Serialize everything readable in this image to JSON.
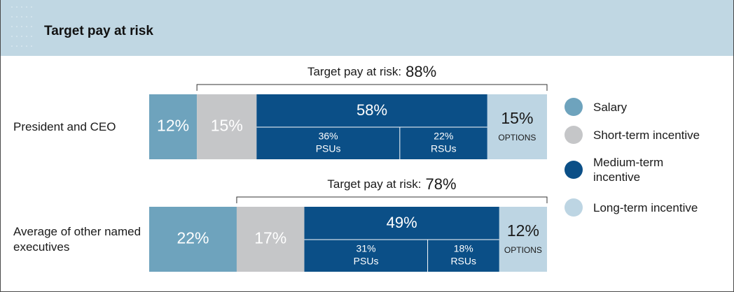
{
  "chart_data": {
    "type": "bar",
    "orientation": "horizontal",
    "stacked": true,
    "title": "Target pay at risk",
    "categories": [
      "President and CEO",
      "Average of other named executives"
    ],
    "series": [
      {
        "name": "Salary",
        "color": "#6ea3bd",
        "values": [
          12,
          22
        ],
        "value_labels": [
          "12%",
          "22%"
        ]
      },
      {
        "name": "Short-term incentive",
        "color": "#c5c6c8",
        "values": [
          15,
          17
        ],
        "value_labels": [
          "15%",
          "17%"
        ]
      },
      {
        "name": "Medium-term incentive",
        "color": "#0b4f87",
        "values": [
          58,
          49
        ],
        "value_labels": [
          "58%",
          "49%"
        ],
        "parts": [
          {
            "name": "PSUs",
            "values": [
              36,
              31
            ],
            "value_labels": [
              "36%",
              "31%"
            ]
          },
          {
            "name": "RSUs",
            "values": [
              22,
              18
            ],
            "value_labels": [
              "22%",
              "18%"
            ]
          }
        ]
      },
      {
        "name": "Long-term incentive",
        "color": "#bdd5e3",
        "values": [
          15,
          12
        ],
        "value_labels": [
          "15%",
          "12%"
        ],
        "sublabel": "OPTIONS"
      }
    ],
    "risk": {
      "label": "Target pay at risk:",
      "values": [
        88,
        78
      ],
      "value_labels": [
        "88%",
        "78%"
      ]
    },
    "legend": "right"
  }
}
